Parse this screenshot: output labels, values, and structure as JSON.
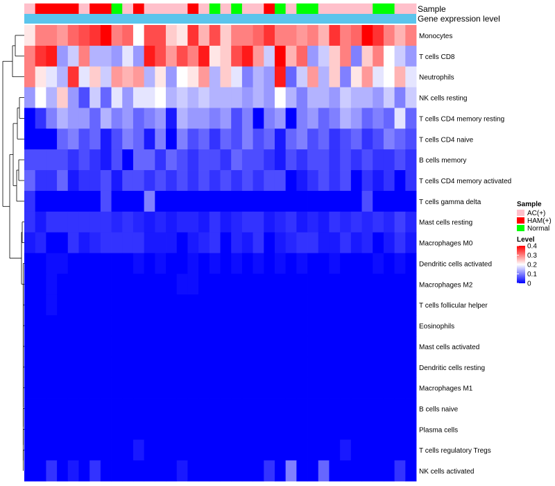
{
  "chart_data": {
    "type": "heatmap",
    "title": "",
    "annotation_tracks": [
      {
        "label": "Sample"
      },
      {
        "label": "Gene expression level"
      }
    ],
    "sample_groups": [
      "AC",
      "HAM",
      "HAM",
      "HAM",
      "HAM",
      "AC",
      "HAM",
      "HAM",
      "Normal",
      "AC",
      "HAM",
      "AC",
      "AC",
      "AC",
      "AC",
      "HAM",
      "AC",
      "Normal",
      "AC",
      "Normal",
      "AC",
      "AC",
      "HAM",
      "Normal",
      "AC",
      "Normal",
      "Normal",
      "AC",
      "AC",
      "AC",
      "AC",
      "AC",
      "Normal",
      "Normal",
      "AC",
      "AC"
    ],
    "expression_bar_color": "#5bc4ec",
    "rows": [
      "Monocytes",
      "T cells CD8",
      "Neutrophils",
      "NK cells resting",
      "T cells CD4 memory resting",
      "T cells CD4 naive",
      "B cells memory",
      "T cells CD4 memory activated",
      "T cells gamma delta",
      "Mast cells resting",
      "Macrophages M0",
      "Dendritic cells activated",
      "Macrophages M2",
      "T cells follicular helper",
      "Eosinophils",
      "Mast cells activated",
      "Dendritic cells resting",
      "Macrophages M1",
      "B cells naive",
      "Plasma cells",
      "T cells regulatory  Tregs",
      "NK cells activated"
    ],
    "values": [
      [
        0.22,
        0.3,
        0.3,
        0.28,
        0.32,
        0.34,
        0.36,
        0.4,
        0.3,
        0.32,
        0.2,
        0.34,
        0.34,
        0.24,
        0.22,
        0.36,
        0.26,
        0.34,
        0.24,
        0.3,
        0.3,
        0.32,
        0.36,
        0.3,
        0.3,
        0.28,
        0.3,
        0.26,
        0.36,
        0.3,
        0.32,
        0.4,
        0.36,
        0.3,
        0.26,
        0.3
      ],
      [
        0.3,
        0.36,
        0.38,
        0.12,
        0.16,
        0.3,
        0.14,
        0.14,
        0.12,
        0.18,
        0.12,
        0.38,
        0.34,
        0.28,
        0.34,
        0.3,
        0.38,
        0.22,
        0.24,
        0.34,
        0.38,
        0.28,
        0.16,
        0.4,
        0.26,
        0.32,
        0.12,
        0.16,
        0.24,
        0.3,
        0.1,
        0.24,
        0.3,
        0.2,
        0.16,
        0.12
      ],
      [
        0.3,
        0.22,
        0.18,
        0.14,
        0.36,
        0.18,
        0.24,
        0.16,
        0.28,
        0.26,
        0.28,
        0.14,
        0.22,
        0.12,
        0.2,
        0.22,
        0.28,
        0.14,
        0.24,
        0.18,
        0.1,
        0.14,
        0.12,
        0.38,
        0.08,
        0.16,
        0.28,
        0.14,
        0.24,
        0.1,
        0.22,
        0.28,
        0.18,
        0.2,
        0.26,
        0.18
      ],
      [
        0.12,
        0.2,
        0.14,
        0.24,
        0.12,
        0.06,
        0.16,
        0.08,
        0.18,
        0.12,
        0.18,
        0.18,
        0.2,
        0.14,
        0.16,
        0.14,
        0.16,
        0.14,
        0.14,
        0.14,
        0.12,
        0.14,
        0.12,
        0.2,
        0.14,
        0.1,
        0.14,
        0.14,
        0.12,
        0.16,
        0.14,
        0.14,
        0.12,
        0.16,
        0.1,
        0.16
      ],
      [
        0.0,
        0.04,
        0.1,
        0.14,
        0.12,
        0.12,
        0.08,
        0.14,
        0.1,
        0.12,
        0.08,
        0.1,
        0.12,
        0.02,
        0.14,
        0.12,
        0.12,
        0.1,
        0.12,
        0.06,
        0.1,
        0.0,
        0.1,
        0.12,
        0.0,
        0.1,
        0.12,
        0.08,
        0.1,
        0.14,
        0.12,
        0.08,
        0.1,
        0.08,
        0.18,
        0.08
      ],
      [
        0.0,
        0.0,
        0.0,
        0.08,
        0.1,
        0.06,
        0.08,
        0.02,
        0.06,
        0.1,
        0.08,
        0.02,
        0.1,
        0.0,
        0.1,
        0.06,
        0.08,
        0.04,
        0.08,
        0.06,
        0.1,
        0.06,
        0.08,
        0.02,
        0.08,
        0.1,
        0.06,
        0.08,
        0.04,
        0.06,
        0.08,
        0.04,
        0.06,
        0.1,
        0.08,
        0.06
      ],
      [
        0.06,
        0.06,
        0.06,
        0.06,
        0.04,
        0.06,
        0.04,
        0.02,
        0.06,
        0.0,
        0.08,
        0.08,
        0.04,
        0.08,
        0.06,
        0.04,
        0.06,
        0.06,
        0.04,
        0.08,
        0.06,
        0.06,
        0.04,
        0.02,
        0.06,
        0.04,
        0.06,
        0.06,
        0.04,
        0.06,
        0.04,
        0.06,
        0.04,
        0.04,
        0.06,
        0.04
      ],
      [
        0.08,
        0.04,
        0.04,
        0.08,
        0.02,
        0.04,
        0.04,
        0.06,
        0.02,
        0.06,
        0.06,
        0.04,
        0.06,
        0.04,
        0.06,
        0.04,
        0.06,
        0.04,
        0.06,
        0.04,
        0.06,
        0.04,
        0.06,
        0.06,
        0.0,
        0.02,
        0.04,
        0.06,
        0.04,
        0.06,
        0.0,
        0.04,
        0.02,
        0.04,
        0.0,
        0.04
      ],
      [
        0.04,
        0.0,
        0.0,
        0.0,
        0.0,
        0.0,
        0.0,
        0.06,
        0.0,
        0.0,
        0.0,
        0.1,
        0.0,
        0.0,
        0.0,
        0.0,
        0.0,
        0.0,
        0.0,
        0.0,
        0.0,
        0.0,
        0.0,
        0.0,
        0.0,
        0.0,
        0.0,
        0.0,
        0.0,
        0.0,
        0.0,
        0.06,
        0.0,
        0.0,
        0.0,
        0.0
      ],
      [
        0.04,
        0.02,
        0.04,
        0.04,
        0.04,
        0.04,
        0.04,
        0.04,
        0.03,
        0.04,
        0.03,
        0.02,
        0.03,
        0.02,
        0.03,
        0.03,
        0.02,
        0.04,
        0.02,
        0.03,
        0.04,
        0.04,
        0.02,
        0.03,
        0.04,
        0.02,
        0.03,
        0.02,
        0.04,
        0.03,
        0.04,
        0.03,
        0.04,
        0.03,
        0.05,
        0.03
      ],
      [
        0.02,
        0.03,
        0.0,
        0.0,
        0.04,
        0.02,
        0.03,
        0.04,
        0.04,
        0.04,
        0.04,
        0.02,
        0.02,
        0.02,
        0.0,
        0.02,
        0.03,
        0.04,
        0.0,
        0.03,
        0.02,
        0.04,
        0.0,
        0.02,
        0.03,
        0.04,
        0.04,
        0.02,
        0.02,
        0.04,
        0.02,
        0.03,
        0.0,
        0.02,
        0.04,
        0.02
      ],
      [
        0.0,
        0.0,
        0.01,
        0.01,
        0.0,
        0.0,
        0.0,
        0.0,
        0.0,
        0.0,
        0.01,
        0.0,
        0.01,
        0.0,
        0.0,
        0.01,
        0.0,
        0.01,
        0.0,
        0.01,
        0.0,
        0.01,
        0.0,
        0.01,
        0.0,
        0.01,
        0.0,
        0.0,
        0.01,
        0.0,
        0.0,
        0.0,
        0.01,
        0.0,
        0.01,
        0.0
      ],
      [
        0.0,
        0.0,
        0.01,
        0.0,
        0.0,
        0.0,
        0.0,
        0.0,
        0.0,
        0.0,
        0.0,
        0.0,
        0.0,
        0.0,
        0.01,
        0.01,
        0.0,
        0.0,
        0.0,
        0.0,
        0.0,
        0.0,
        0.0,
        0.0,
        0.0,
        0.0,
        0.0,
        0.0,
        0.0,
        0.0,
        0.0,
        0.0,
        0.0,
        0.0,
        0.0,
        0.0
      ],
      [
        0.0,
        0.0,
        0.01,
        0.0,
        0.0,
        0.0,
        0.0,
        0.0,
        0.0,
        0.0,
        0.0,
        0.0,
        0.0,
        0.0,
        0.0,
        0.0,
        0.0,
        0.0,
        0.0,
        0.0,
        0.0,
        0.0,
        0.0,
        0.0,
        0.0,
        0.0,
        0.0,
        0.0,
        0.0,
        0.0,
        0.0,
        0.0,
        0.0,
        0.0,
        0.0,
        0.0
      ],
      [
        0.0,
        0.0,
        0.0,
        0.0,
        0.0,
        0.0,
        0.0,
        0.0,
        0.0,
        0.0,
        0.0,
        0.0,
        0.0,
        0.0,
        0.0,
        0.0,
        0.0,
        0.0,
        0.0,
        0.0,
        0.0,
        0.0,
        0.0,
        0.0,
        0.0,
        0.0,
        0.0,
        0.0,
        0.0,
        0.0,
        0.0,
        0.0,
        0.0,
        0.0,
        0.0,
        0.0
      ],
      [
        0.0,
        0.0,
        0.0,
        0.0,
        0.0,
        0.0,
        0.0,
        0.0,
        0.0,
        0.0,
        0.0,
        0.0,
        0.0,
        0.0,
        0.0,
        0.0,
        0.0,
        0.0,
        0.0,
        0.0,
        0.0,
        0.0,
        0.0,
        0.0,
        0.0,
        0.0,
        0.0,
        0.0,
        0.0,
        0.0,
        0.0,
        0.0,
        0.0,
        0.0,
        0.0,
        0.0
      ],
      [
        0.0,
        0.0,
        0.0,
        0.0,
        0.0,
        0.0,
        0.0,
        0.0,
        0.0,
        0.0,
        0.0,
        0.0,
        0.0,
        0.0,
        0.0,
        0.0,
        0.0,
        0.0,
        0.0,
        0.0,
        0.0,
        0.0,
        0.0,
        0.0,
        0.0,
        0.0,
        0.0,
        0.0,
        0.0,
        0.0,
        0.0,
        0.0,
        0.0,
        0.0,
        0.0,
        0.0
      ],
      [
        0.0,
        0.0,
        0.0,
        0.0,
        0.0,
        0.0,
        0.0,
        0.0,
        0.0,
        0.0,
        0.0,
        0.0,
        0.0,
        0.0,
        0.0,
        0.0,
        0.0,
        0.0,
        0.0,
        0.0,
        0.0,
        0.0,
        0.0,
        0.0,
        0.0,
        0.0,
        0.0,
        0.0,
        0.0,
        0.0,
        0.0,
        0.0,
        0.0,
        0.0,
        0.0,
        0.0
      ],
      [
        0.0,
        0.0,
        0.0,
        0.0,
        0.0,
        0.0,
        0.0,
        0.0,
        0.0,
        0.0,
        0.0,
        0.0,
        0.0,
        0.0,
        0.0,
        0.0,
        0.0,
        0.0,
        0.0,
        0.0,
        0.0,
        0.0,
        0.0,
        0.0,
        0.0,
        0.0,
        0.0,
        0.0,
        0.0,
        0.0,
        0.0,
        0.0,
        0.0,
        0.0,
        0.0,
        0.0
      ],
      [
        0.0,
        0.0,
        0.0,
        0.0,
        0.0,
        0.0,
        0.0,
        0.0,
        0.0,
        0.0,
        0.0,
        0.0,
        0.0,
        0.0,
        0.0,
        0.0,
        0.0,
        0.0,
        0.0,
        0.0,
        0.0,
        0.0,
        0.0,
        0.0,
        0.0,
        0.0,
        0.0,
        0.0,
        0.0,
        0.0,
        0.0,
        0.0,
        0.0,
        0.0,
        0.0,
        0.0
      ],
      [
        0.0,
        0.0,
        0.0,
        0.0,
        0.0,
        0.0,
        0.0,
        0.0,
        0.0,
        0.0,
        0.02,
        0.0,
        0.0,
        0.0,
        0.0,
        0.0,
        0.0,
        0.0,
        0.0,
        0.0,
        0.0,
        0.0,
        0.0,
        0.0,
        0.0,
        0.0,
        0.0,
        0.0,
        0.0,
        0.02,
        0.0,
        0.0,
        0.0,
        0.0,
        0.0,
        0.0
      ],
      [
        0.0,
        0.0,
        0.04,
        0.0,
        0.02,
        0.0,
        0.04,
        0.0,
        0.0,
        0.0,
        0.0,
        0.0,
        0.0,
        0.0,
        0.02,
        0.0,
        0.0,
        0.0,
        0.0,
        0.0,
        0.0,
        0.0,
        0.04,
        0.0,
        0.1,
        0.0,
        0.0,
        0.08,
        0.0,
        0.0,
        0.0,
        0.0,
        0.0,
        0.0,
        0.04,
        0.0
      ]
    ],
    "color_scale": {
      "min": 0,
      "max": 0.4,
      "stops": [
        {
          "value": 0,
          "color": "#0000ff"
        },
        {
          "value": 0.2,
          "color": "#ffffff"
        },
        {
          "value": 0.4,
          "color": "#ff0000"
        }
      ]
    },
    "legend": {
      "sample": {
        "title": "Sample",
        "entries": [
          {
            "label": "AC(+)",
            "key": "AC",
            "color": "#ffc0cb"
          },
          {
            "label": "HAM(+)",
            "key": "HAM",
            "color": "#ff0000"
          },
          {
            "label": "Normal",
            "key": "Normal",
            "color": "#00ff00"
          }
        ]
      },
      "level": {
        "title": "Level",
        "ticks": [
          0.4,
          0.3,
          0.2,
          0.1,
          0
        ],
        "tick_labels": [
          "0.4",
          "0.3",
          "0.2",
          "0.1",
          "0"
        ]
      },
      "placement": "right"
    },
    "dendrogram": "rows"
  }
}
